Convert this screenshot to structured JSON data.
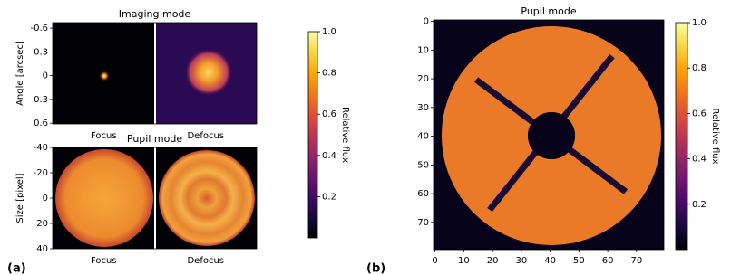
{
  "chart_data": [
    {
      "type": "image",
      "panel_label": "(a)",
      "title": "Imaging mode",
      "ylabel": "Angle [arcsec]",
      "categories": [
        "Focus",
        "Defocus"
      ],
      "ylim": [
        0.61,
        -0.67
      ],
      "yticks": [
        -0.6,
        -0.3,
        0,
        0.3,
        0.6
      ]
    },
    {
      "type": "image",
      "title": "Pupil mode",
      "ylabel": "Size [pixel]",
      "categories": [
        "Focus",
        "Defocus"
      ],
      "ylim": [
        40,
        -40
      ],
      "yticks": [
        -40,
        -20,
        0,
        20,
        40
      ]
    },
    {
      "type": "colorbar",
      "label": "Relative flux",
      "colormap": "inferno",
      "ylim": [
        0,
        1
      ],
      "yticks": [
        0.2,
        0.4,
        0.6,
        0.8,
        {
          "value": 1,
          "label": "1.0"
        }
      ]
    },
    {
      "type": "image",
      "panel_label": "(b)",
      "title": "Pupil mode",
      "xlim": [
        -0.5,
        79.5
      ],
      "ylim": [
        79.5,
        -0.5
      ],
      "xticks": [
        0,
        10,
        20,
        30,
        40,
        50,
        60,
        70
      ],
      "yticks": [
        0,
        10,
        20,
        30,
        40,
        50,
        60,
        70
      ]
    },
    {
      "type": "colorbar",
      "label": "Relative flux",
      "colormap": "inferno",
      "ylim": [
        0,
        1
      ],
      "yticks": [
        0.2,
        0.4,
        0.6,
        0.8,
        {
          "value": 1,
          "label": "1.0"
        }
      ]
    }
  ]
}
